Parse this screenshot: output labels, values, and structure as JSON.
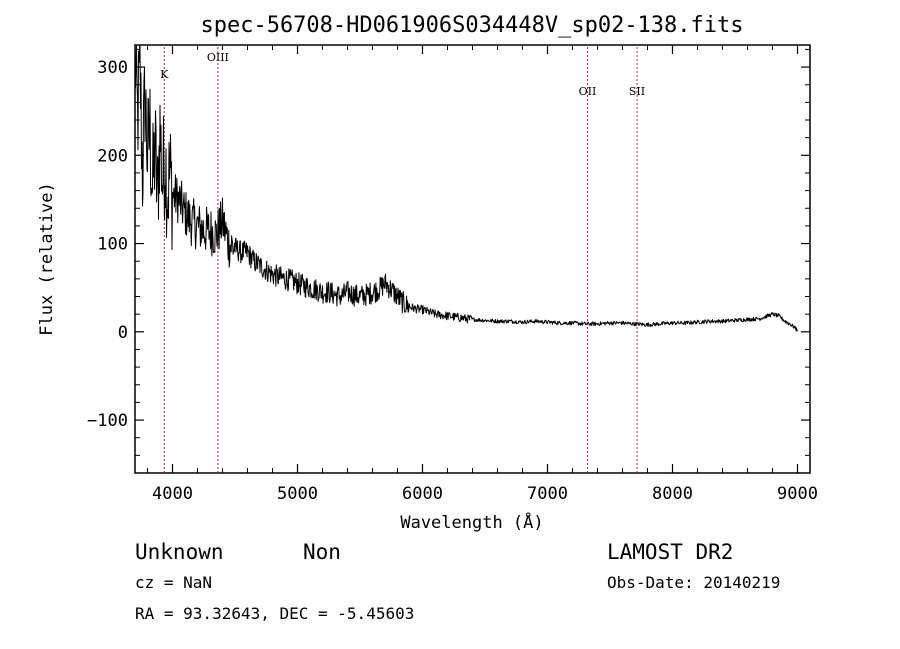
{
  "chart_data": {
    "type": "line",
    "title": "spec-56708-HD061906S034448V_sp02-138.fits",
    "xlabel": "Wavelength (Å)",
    "ylabel": "Flux (relative)",
    "xlim": [
      3700,
      9100
    ],
    "ylim": [
      -160,
      325
    ],
    "x_ticks": [
      4000,
      5000,
      6000,
      7000,
      8000,
      9000
    ],
    "x_tick_labels": [
      "4000",
      "5000",
      "6000",
      "7000",
      "8000",
      "9000"
    ],
    "y_ticks": [
      -100,
      0,
      100,
      200,
      300
    ],
    "y_tick_labels": [
      "−100",
      "0",
      "100",
      "200",
      "300"
    ],
    "grid": false,
    "line_color": "#000000",
    "marker_color": "#b22222",
    "series": [
      {
        "x": [
          3700,
          3720,
          3740,
          3760,
          3780,
          3800,
          3820,
          3840,
          3860,
          3880,
          3900,
          3920,
          3940,
          3960,
          3980,
          4000,
          4050,
          4100,
          4150,
          4200,
          4250,
          4300,
          4350,
          4400,
          4450,
          4500,
          4550,
          4600,
          4650,
          4700,
          4750,
          4800,
          4850,
          4900,
          4950,
          5000,
          5050,
          5100,
          5150,
          5200,
          5250,
          5300,
          5350,
          5400,
          5450,
          5500,
          5550,
          5600,
          5650,
          5700,
          5750,
          5800,
          5850,
          5900,
          5950,
          6000,
          6100,
          6200,
          6300,
          6400,
          6500,
          6600,
          6700,
          6800,
          6900,
          7000,
          7100,
          7200,
          7300,
          7400,
          7500,
          7600,
          7700,
          7800,
          7900,
          8000,
          8100,
          8200,
          8300,
          8400,
          8500,
          8600,
          8700,
          8800,
          8850,
          8900,
          8950,
          9000
        ],
        "y": [
          320,
          240,
          300,
          180,
          270,
          200,
          230,
          160,
          210,
          150,
          230,
          170,
          200,
          160,
          180,
          155,
          150,
          135,
          125,
          120,
          115,
          115,
          110,
          125,
          100,
          95,
          90,
          90,
          80,
          75,
          70,
          65,
          62,
          60,
          58,
          55,
          52,
          50,
          48,
          45,
          45,
          42,
          40,
          45,
          42,
          40,
          42,
          45,
          48,
          55,
          48,
          40,
          32,
          28,
          26,
          25,
          20,
          18,
          16,
          14,
          13,
          12,
          12,
          11,
          12,
          11,
          10,
          10,
          9,
          9,
          10,
          10,
          9,
          8,
          9,
          10,
          10,
          11,
          12,
          12,
          13,
          14,
          15,
          20,
          18,
          12,
          8,
          2
        ]
      }
    ],
    "spectral_lines": [
      {
        "label": "K",
        "x": 3934
      },
      {
        "label": "OIII",
        "x": 4363
      },
      {
        "label": "OII",
        "x": 7320
      },
      {
        "label": "SII",
        "x": 7716
      }
    ]
  },
  "info": {
    "class_label": "Unknown",
    "subclass_label": "Non",
    "survey": "LAMOST DR2",
    "cz": "cz = NaN",
    "obs_date": "Obs-Date: 20140219",
    "ra_dec": "RA =  93.32643, DEC =  -5.45603"
  }
}
